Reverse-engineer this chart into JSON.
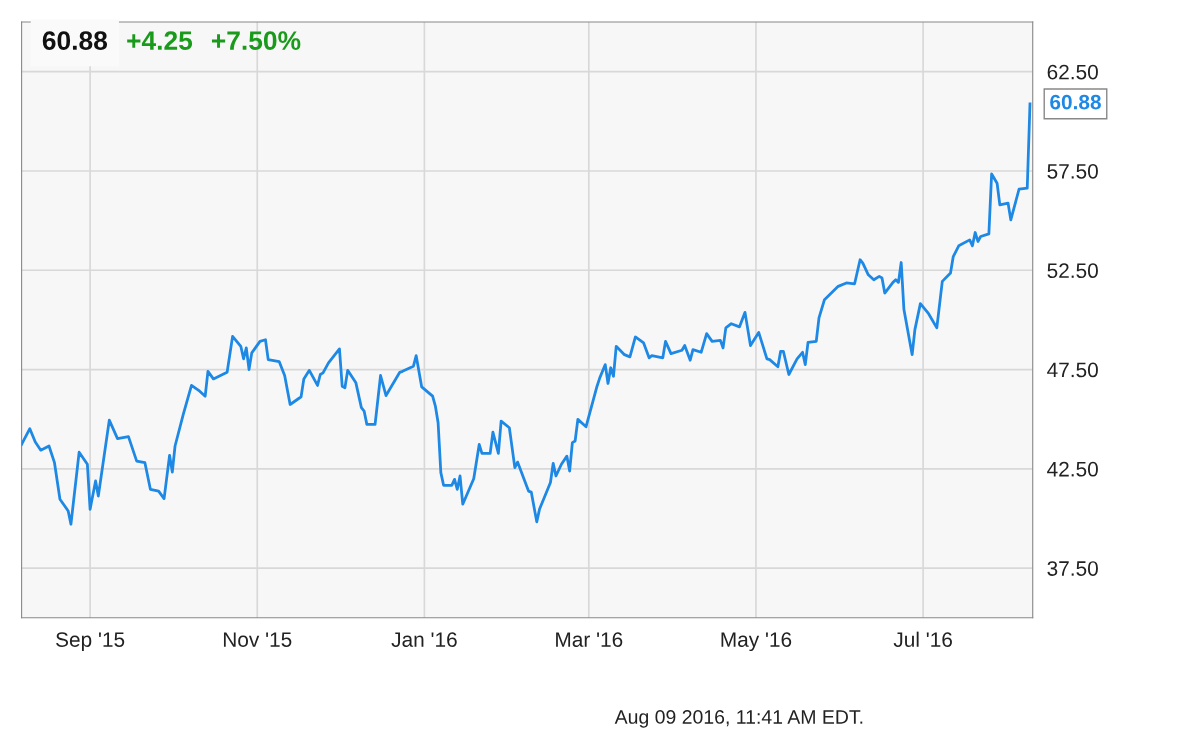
{
  "chart_data": {
    "type": "line",
    "title": "60.88",
    "annotations": [
      "+4.25",
      "+7.50%",
      "Aug 09 2016, 11:41 AM EDT.",
      {
        "text": "60.88",
        "x": "2016-08-09",
        "y": 60.88
      }
    ],
    "x": [
      "2015-08-07",
      "2015-08-10",
      "2015-08-12",
      "2015-08-14",
      "2015-08-17",
      "2015-08-19",
      "2015-08-21",
      "2015-08-24",
      "2015-08-25",
      "2015-08-28",
      "2015-08-31",
      "2015-09-01",
      "2015-09-03",
      "2015-09-04",
      "2015-09-08",
      "2015-09-11",
      "2015-09-15",
      "2015-09-18",
      "2015-09-21",
      "2015-09-23",
      "2015-09-26",
      "2015-09-28",
      "2015-09-30",
      "2015-10-01",
      "2015-10-02",
      "2015-10-05",
      "2015-10-08",
      "2015-10-11",
      "2015-10-13",
      "2015-10-14",
      "2015-10-16",
      "2015-10-21",
      "2015-10-23",
      "2015-10-26",
      "2015-10-27",
      "2015-10-28",
      "2015-10-29",
      "2015-10-30",
      "2015-11-02",
      "2015-11-04",
      "2015-11-05",
      "2015-11-09",
      "2015-11-11",
      "2015-11-13",
      "2015-11-16",
      "2015-11-17",
      "2015-11-18",
      "2015-11-20",
      "2015-11-23",
      "2015-11-24",
      "2015-11-25",
      "2015-11-27",
      "2015-12-01",
      "2015-12-02",
      "2015-12-03",
      "2015-12-04",
      "2015-12-07",
      "2015-12-09",
      "2015-12-10",
      "2015-12-11",
      "2015-12-14",
      "2015-12-16",
      "2015-12-18",
      "2015-12-23",
      "2015-12-24",
      "2015-12-28",
      "2015-12-29",
      "2015-12-31",
      "2016-01-04",
      "2016-01-05",
      "2016-01-06",
      "2016-01-07",
      "2016-01-08",
      "2016-01-11",
      "2016-01-12",
      "2016-01-13",
      "2016-01-14",
      "2016-01-15",
      "2016-01-19",
      "2016-01-21",
      "2016-01-22",
      "2016-01-25",
      "2016-01-26",
      "2016-01-28",
      "2016-01-29",
      "2016-02-01",
      "2016-02-03",
      "2016-02-04",
      "2016-02-08",
      "2016-02-09",
      "2016-02-11",
      "2016-02-12",
      "2016-02-16",
      "2016-02-17",
      "2016-02-18",
      "2016-02-20",
      "2016-02-22",
      "2016-02-23",
      "2016-02-24",
      "2016-02-25",
      "2016-02-26",
      "2016-02-29",
      "2016-03-04",
      "2016-03-05",
      "2016-03-07",
      "2016-03-08",
      "2016-03-09",
      "2016-03-10",
      "2016-03-11",
      "2016-03-14",
      "2016-03-16",
      "2016-03-18",
      "2016-03-21",
      "2016-03-23",
      "2016-03-24",
      "2016-03-28",
      "2016-03-29",
      "2016-03-31",
      "2016-04-04",
      "2016-04-05",
      "2016-04-07",
      "2016-04-08",
      "2016-04-11",
      "2016-04-13",
      "2016-04-15",
      "2016-04-18",
      "2016-04-19",
      "2016-04-20",
      "2016-04-22",
      "2016-04-25",
      "2016-04-27",
      "2016-04-29",
      "2016-05-02",
      "2016-05-05",
      "2016-05-06",
      "2016-05-09",
      "2016-05-10",
      "2016-05-11",
      "2016-05-13",
      "2016-05-16",
      "2016-05-18",
      "2016-05-19",
      "2016-05-20",
      "2016-05-23",
      "2016-05-24",
      "2016-05-26",
      "2016-05-31",
      "2016-06-03",
      "2016-06-06",
      "2016-06-08",
      "2016-06-09",
      "2016-06-11",
      "2016-06-13",
      "2016-06-15",
      "2016-06-16",
      "2016-06-17",
      "2016-06-20",
      "2016-06-21",
      "2016-06-22",
      "2016-06-23",
      "2016-06-24",
      "2016-06-27",
      "2016-06-28",
      "2016-06-30",
      "2016-07-03",
      "2016-07-06",
      "2016-07-08",
      "2016-07-11",
      "2016-07-12",
      "2016-07-14",
      "2016-07-18",
      "2016-07-19",
      "2016-07-20",
      "2016-07-21",
      "2016-07-22",
      "2016-07-25",
      "2016-07-26",
      "2016-07-28",
      "2016-07-29",
      "2016-08-01",
      "2016-08-02",
      "2016-08-05",
      "2016-08-08",
      "2016-08-09"
    ],
    "series": [
      {
        "color": "#1e88e5",
        "values": [
          43.73,
          44.52,
          43.85,
          43.44,
          43.65,
          42.81,
          40.97,
          40.38,
          39.71,
          43.34,
          42.73,
          40.46,
          41.89,
          41.13,
          44.95,
          44.02,
          44.12,
          42.89,
          42.81,
          41.47,
          41.38,
          41.0,
          43.18,
          42.34,
          43.65,
          45.24,
          46.7,
          46.41,
          46.16,
          47.41,
          47.03,
          47.36,
          49.17,
          48.67,
          48.04,
          48.59,
          47.5,
          48.34,
          48.92,
          49.0,
          48.0,
          47.9,
          47.2,
          45.74,
          46.03,
          46.13,
          47.03,
          47.46,
          46.7,
          47.25,
          47.33,
          47.84,
          48.54,
          46.66,
          46.58,
          47.46,
          46.83,
          45.58,
          45.41,
          44.74,
          44.74,
          47.2,
          46.19,
          47.36,
          47.41,
          47.67,
          48.2,
          46.63,
          46.16,
          45.66,
          44.82,
          42.31,
          41.67,
          41.67,
          41.97,
          41.47,
          42.14,
          40.72,
          42.0,
          43.73,
          43.28,
          43.28,
          44.35,
          43.28,
          44.9,
          44.57,
          42.56,
          42.84,
          41.38,
          41.33,
          39.83,
          40.46,
          41.81,
          42.78,
          42.14,
          42.73,
          43.14,
          42.39,
          43.82,
          43.9,
          44.99,
          44.62,
          46.66,
          47.08,
          47.75,
          46.8,
          47.59,
          47.16,
          48.67,
          48.25,
          48.14,
          49.14,
          48.84,
          48.09,
          48.2,
          48.09,
          48.92,
          48.3,
          48.47,
          48.71,
          47.97,
          48.5,
          48.37,
          49.31,
          48.92,
          48.97,
          48.59,
          49.6,
          49.81,
          49.65,
          50.38,
          48.71,
          49.37,
          48.04,
          48.0,
          47.64,
          48.42,
          48.42,
          47.25,
          48.04,
          48.37,
          47.75,
          48.87,
          48.92,
          50.1,
          51.02,
          51.69,
          51.86,
          51.82,
          53.03,
          52.86,
          52.27,
          52.02,
          52.19,
          52.11,
          51.35,
          51.89,
          52.02,
          51.89,
          52.89,
          50.52,
          48.25,
          49.51,
          50.82,
          50.31,
          49.6,
          51.94,
          52.36,
          53.19,
          53.73,
          54.03,
          53.73,
          54.4,
          53.95,
          54.2,
          54.33,
          57.35,
          56.88,
          55.79,
          55.88,
          55.04,
          56.58,
          56.63,
          60.88
        ]
      }
    ],
    "xlim": [
      "2015-08-07",
      "2016-08-10"
    ],
    "xticks": [
      {
        "value": "2015-09-01",
        "label": "Sep '15"
      },
      {
        "value": "2015-11-01",
        "label": "Nov '15"
      },
      {
        "value": "2016-01-01",
        "label": "Jan '16"
      },
      {
        "value": "2016-03-01",
        "label": "Mar '16"
      },
      {
        "value": "2016-05-01",
        "label": "May '16"
      },
      {
        "value": "2016-07-01",
        "label": "Jul '16"
      }
    ],
    "ylim": [
      35,
      65
    ],
    "yticks": [
      {
        "value": 37.5,
        "label": "37.50"
      },
      {
        "value": 42.5,
        "label": "42.50"
      },
      {
        "value": 47.5,
        "label": "47.50"
      },
      {
        "value": 52.5,
        "label": "52.50"
      },
      {
        "value": 57.5,
        "label": "57.50"
      },
      {
        "value": 62.5,
        "label": "62.50"
      }
    ],
    "grid": true,
    "legend": false
  }
}
